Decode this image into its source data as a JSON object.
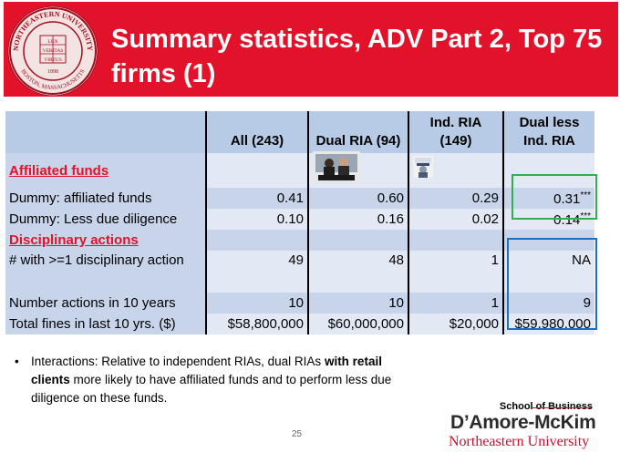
{
  "header": {
    "title": "Summary statistics, ADV Part 2, Top 75 firms (1)",
    "background": "#e2122a",
    "seal": {
      "icon": "university-seal-icon",
      "top_text": "NORTHEASTERN UNIVERSITY",
      "bottom_text": "BOSTON, MASSACHUSETTS",
      "motto": [
        "LUX",
        "VERITAS",
        "VIRTUS"
      ],
      "year": "1898"
    }
  },
  "table": {
    "columns": [
      "All  (243)",
      "Dual RIA (94)",
      "Ind. RIA (149)",
      "Dual less Ind. RIA"
    ],
    "sections": {
      "affiliated": "Affiliated funds",
      "disciplinary": "Disciplinary actions"
    },
    "rows": {
      "dummy_affiliated": {
        "label": "Dummy: affiliated funds",
        "all": "0.41",
        "dual": "0.60",
        "ind": "0.29",
        "diff": "0.31",
        "stars": "***"
      },
      "dummy_due_diligence": {
        "label": "Dummy: Less due diligence",
        "all": "0.10",
        "dual": "0.16",
        "ind": "0.02",
        "diff": "0.14",
        "stars": "***"
      },
      "with_disciplinary": {
        "label": "# with >=1 disciplinary action",
        "all": "49",
        "dual": "48",
        "ind": "1",
        "diff": "NA"
      },
      "number_actions": {
        "label": "Number actions in 10 years",
        "all": "10",
        "dual": "10",
        "ind": "1",
        "diff": "9"
      },
      "total_fines": {
        "label": "Total fines in last 10 yrs. ($)",
        "all": "$58,800,000",
        "dual": "$60,000,000",
        "ind": "$20,000",
        "diff": "$59,980,000"
      }
    },
    "header_bg": "#b7cbe6",
    "row_bg_dark": "#c7d4ea",
    "row_bg_light": "#e3e9f4",
    "highlight_green": "#2fb050",
    "highlight_blue": "#1f6fc0"
  },
  "bullet": {
    "part1": "Interactions: Relative to independent RIAs, dual RIAs ",
    "bold": "with retail clients",
    "part2": " more likely to have affiliated funds and to perform less due diligence on these funds."
  },
  "page_number": "25",
  "logo": {
    "school": "School of Business",
    "name": "D’Amore-McKim",
    "university": "Northeastern University"
  }
}
